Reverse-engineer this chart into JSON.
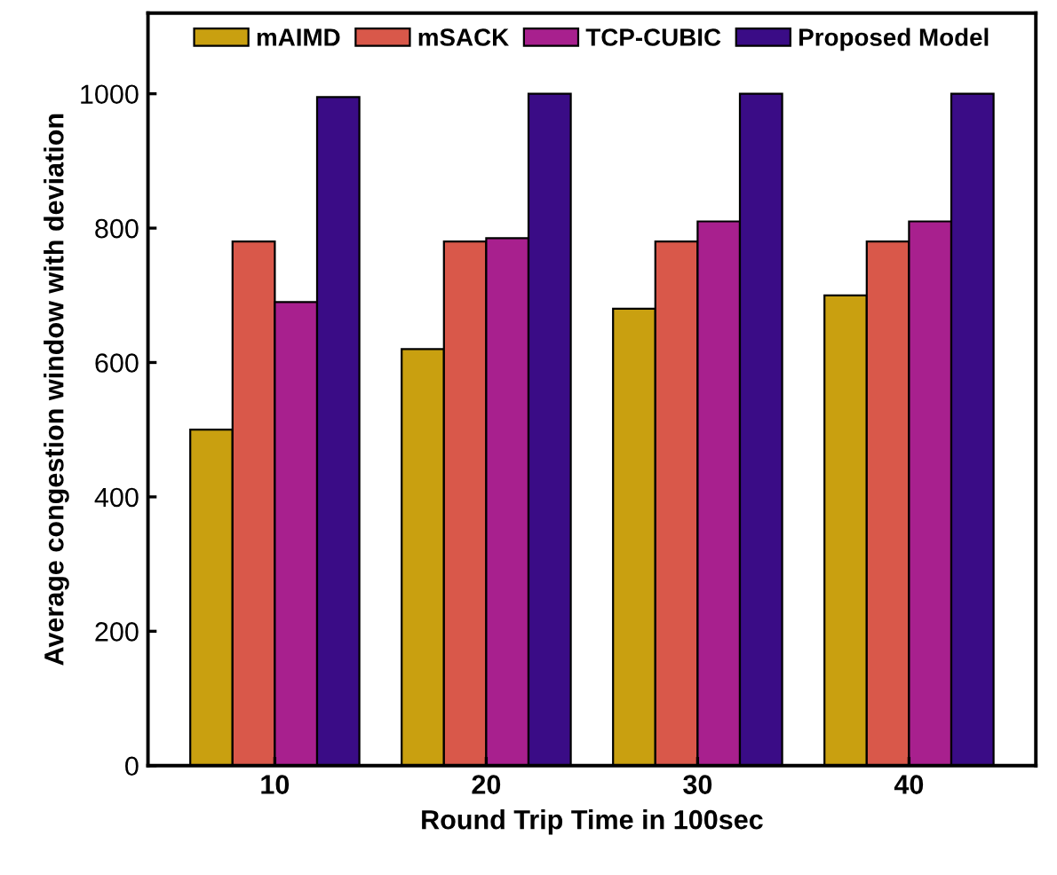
{
  "chart_data": {
    "type": "bar",
    "xlabel": "Round Trip Time in 100sec",
    "ylabel": "Average congestion window with deviation",
    "categories": [
      "10",
      "20",
      "30",
      "40"
    ],
    "series": [
      {
        "name": "mAIMD",
        "color": "#c9a010",
        "values": [
          500,
          620,
          680,
          700
        ]
      },
      {
        "name": "mSACK",
        "color": "#d9584a",
        "values": [
          780,
          780,
          780,
          780
        ]
      },
      {
        "name": "TCP-CUBIC",
        "color": "#a8208e",
        "values": [
          690,
          785,
          810,
          810
        ]
      },
      {
        "name": "Proposed Model",
        "color": "#3a0c86",
        "values": [
          995,
          1000,
          1000,
          1000
        ]
      }
    ],
    "ylim": [
      0,
      1120
    ],
    "yticks": [
      0,
      200,
      400,
      600,
      800,
      1000
    ],
    "grid": false,
    "legend": "top"
  }
}
